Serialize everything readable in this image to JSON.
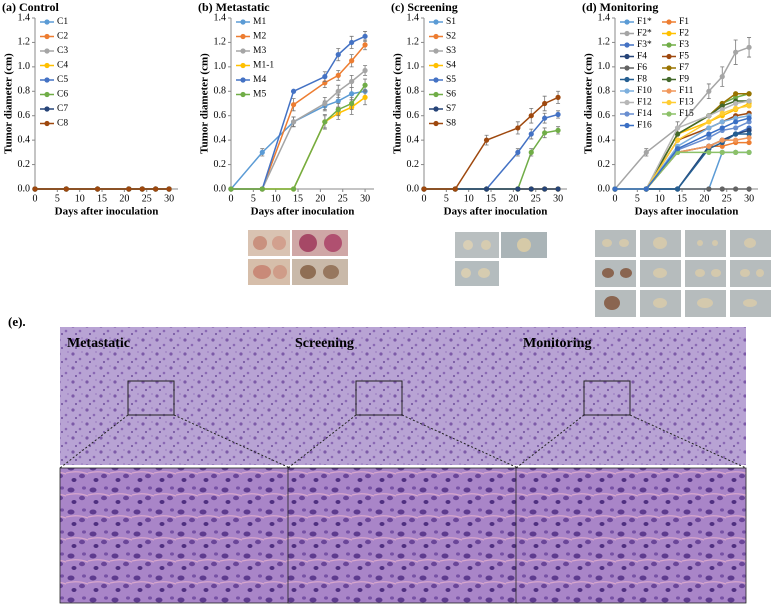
{
  "chart_data": [
    {
      "type": "line",
      "title": "(a) Control",
      "xlabel": "Days after inoculation",
      "ylabel": "Tumor diameter (cm)",
      "x": [
        0,
        7,
        14,
        21,
        24,
        27,
        30
      ],
      "xlim": [
        0,
        32
      ],
      "xticks": [
        0,
        5,
        10,
        15,
        20,
        25,
        30
      ],
      "ylim": [
        0,
        1.4
      ],
      "yticks": [
        {
          "value": 0,
          "label": "0.0"
        },
        0.2,
        0.4,
        0.6,
        0.8,
        {
          "value": 1,
          "label": "1.0"
        },
        1.2,
        1.4
      ],
      "legend": "upper left",
      "legend_columns": 1,
      "series": [
        {
          "name": "C1",
          "color": "#5b9bd5",
          "values": [
            0,
            0,
            0,
            0,
            0,
            0,
            0
          ]
        },
        {
          "name": "C2",
          "color": "#ed7d31",
          "values": [
            0,
            0,
            0,
            0,
            0,
            0,
            0
          ]
        },
        {
          "name": "C3",
          "color": "#a5a5a5",
          "values": [
            0,
            0,
            0,
            0,
            0,
            0,
            0
          ]
        },
        {
          "name": "C4",
          "color": "#ffc000",
          "values": [
            0,
            0,
            0,
            0,
            0,
            0,
            0
          ]
        },
        {
          "name": "C5",
          "color": "#4472c4",
          "values": [
            0,
            0,
            0,
            0,
            0,
            0,
            0
          ]
        },
        {
          "name": "C6",
          "color": "#70ad47",
          "values": [
            0,
            0,
            0,
            0,
            0,
            0,
            0
          ]
        },
        {
          "name": "C7",
          "color": "#264478",
          "values": [
            0,
            0,
            0,
            0,
            0,
            0,
            0
          ]
        },
        {
          "name": "C8",
          "color": "#9e480e",
          "values": [
            0,
            0,
            0,
            0,
            0,
            0,
            0
          ]
        }
      ]
    },
    {
      "type": "line",
      "title": "(b) Metastatic",
      "xlabel": "Days after inoculation",
      "ylabel": "Tumor diameter (cm)",
      "x": [
        0,
        7,
        14,
        21,
        24,
        27,
        30
      ],
      "xlim": [
        0,
        32
      ],
      "xticks": [
        0,
        5,
        10,
        15,
        20,
        25,
        30
      ],
      "ylim": [
        0,
        1.4
      ],
      "yticks": [
        {
          "value": 0,
          "label": "0.0"
        },
        0.2,
        0.4,
        0.6,
        0.8,
        {
          "value": 1,
          "label": "1.0"
        },
        1.2,
        1.4
      ],
      "legend": "upper left",
      "legend_columns": 1,
      "series": [
        {
          "name": "M1",
          "color": "#5b9bd5",
          "values": [
            0,
            0.3,
            0.55,
            0.68,
            0.72,
            0.78,
            0.8
          ],
          "errors": [
            0,
            0.03,
            0.04,
            0.04,
            0.05,
            0.05,
            0.05
          ]
        },
        {
          "name": "M2",
          "color": "#ed7d31",
          "values": [
            0,
            0,
            0.69,
            0.87,
            0.93,
            1.05,
            1.18
          ],
          "errors": [
            0,
            0,
            0.05,
            0.04,
            0.04,
            0.05,
            0.04
          ]
        },
        {
          "name": "M3",
          "color": "#a5a5a5",
          "values": [
            0,
            0,
            0.55,
            0.7,
            0.8,
            0.88,
            0.97
          ],
          "errors": [
            0,
            0,
            0.04,
            0.05,
            0.05,
            0.05,
            0.04
          ]
        },
        {
          "name": "M1-1",
          "color": "#ffc000",
          "values": [
            0,
            0,
            0,
            0.55,
            0.62,
            0.67,
            0.75
          ],
          "errors": [
            0,
            0,
            0,
            0.05,
            0.05,
            0.06,
            0.06
          ]
        },
        {
          "name": "M4",
          "color": "#4472c4",
          "values": [
            0,
            0,
            0.8,
            0.92,
            1.1,
            1.2,
            1.25
          ],
          "errors": [
            0,
            0,
            0,
            0.04,
            0.05,
            0.05,
            0.04
          ]
        },
        {
          "name": "M5",
          "color": "#70ad47",
          "values": [
            0,
            0,
            0,
            0.55,
            0.65,
            0.7,
            0.85
          ],
          "errors": [
            0,
            0,
            0,
            0.06,
            0.05,
            0.05,
            0.05
          ]
        }
      ]
    },
    {
      "type": "line",
      "title": "(c) Screening",
      "xlabel": "Days after inoculation",
      "ylabel": "Tumor diameter (cm)",
      "x": [
        0,
        7,
        14,
        21,
        24,
        27,
        30
      ],
      "xlim": [
        0,
        32
      ],
      "xticks": [
        0,
        5,
        10,
        15,
        20,
        25,
        30
      ],
      "ylim": [
        0,
        1.4
      ],
      "yticks": [
        {
          "value": 0,
          "label": "0.0"
        },
        0.2,
        0.4,
        0.6,
        0.8,
        {
          "value": 1,
          "label": "1.0"
        },
        1.2,
        1.4
      ],
      "legend": "upper left",
      "legend_columns": 1,
      "series": [
        {
          "name": "S1",
          "color": "#5b9bd5",
          "values": [
            0,
            0,
            0,
            0,
            0,
            0,
            0
          ]
        },
        {
          "name": "S2",
          "color": "#ed7d31",
          "values": [
            0,
            0,
            0,
            0,
            0,
            0,
            0
          ]
        },
        {
          "name": "S3",
          "color": "#a5a5a5",
          "values": [
            0,
            0,
            0,
            0,
            0,
            0,
            0
          ]
        },
        {
          "name": "S4",
          "color": "#ffc000",
          "values": [
            0,
            0,
            0,
            0,
            0,
            0,
            0
          ]
        },
        {
          "name": "S5",
          "color": "#4472c4",
          "values": [
            0,
            0,
            0,
            0.3,
            0.45,
            0.58,
            0.61
          ],
          "errors": [
            0,
            0,
            0,
            0.03,
            0.04,
            0.04,
            0.03
          ]
        },
        {
          "name": "S6",
          "color": "#70ad47",
          "values": [
            0,
            0,
            0,
            0,
            0.3,
            0.46,
            0.48
          ],
          "errors": [
            0,
            0,
            0,
            0,
            0.03,
            0.04,
            0.03
          ]
        },
        {
          "name": "S7",
          "color": "#264478",
          "values": [
            0,
            0,
            0,
            0,
            0,
            0,
            0
          ]
        },
        {
          "name": "S8",
          "color": "#9e480e",
          "values": [
            0,
            0,
            0.4,
            0.5,
            0.6,
            0.7,
            0.75
          ],
          "errors": [
            0,
            0,
            0.04,
            0.05,
            0.06,
            0.06,
            0.05
          ]
        }
      ]
    },
    {
      "type": "line",
      "title": "(d) Monitoring",
      "xlabel": "Days after inoculation",
      "ylabel": "Tumor diameter (cm)",
      "x": [
        0,
        7,
        14,
        21,
        24,
        27,
        30
      ],
      "xlim": [
        0,
        32
      ],
      "xticks": [
        0,
        5,
        10,
        15,
        20,
        25,
        30
      ],
      "ylim": [
        0,
        1.4
      ],
      "yticks": [
        {
          "value": 0,
          "label": "0.0"
        },
        0.2,
        0.4,
        0.6,
        0.8,
        {
          "value": 1,
          "label": "1.0"
        },
        1.2,
        1.4
      ],
      "legend": "upper left",
      "legend_columns": 2,
      "series": [
        {
          "name": "F1*",
          "color": "#5b9bd5",
          "values": [
            0,
            0,
            0,
            0,
            0.3,
            0.3,
            0.3
          ]
        },
        {
          "name": "F1",
          "color": "#ed7d31",
          "values": [
            0,
            0,
            0.3,
            0.35,
            0.35,
            0.38,
            0.38
          ]
        },
        {
          "name": "F2*",
          "color": "#a5a5a5",
          "values": [
            0,
            0.3,
            0.5,
            0.8,
            0.92,
            1.12,
            1.16
          ],
          "errors": [
            0,
            0.03,
            0.05,
            0.06,
            0.08,
            0.1,
            0.08
          ]
        },
        {
          "name": "F2",
          "color": "#ffc000",
          "values": [
            0,
            0,
            0.45,
            0.55,
            0.6,
            0.65,
            0.7
          ]
        },
        {
          "name": "F3*",
          "color": "#4472c4",
          "values": [
            0,
            0,
            0.3,
            0.35,
            0.4,
            0.45,
            0.5
          ]
        },
        {
          "name": "F3",
          "color": "#70ad47",
          "values": [
            0,
            0,
            0.45,
            0.6,
            0.7,
            0.75,
            0.78
          ]
        },
        {
          "name": "F4",
          "color": "#264478",
          "values": [
            0,
            0,
            0,
            0.35,
            0.4,
            0.45,
            0.48
          ]
        },
        {
          "name": "F5",
          "color": "#9e480e",
          "values": [
            0,
            0,
            0.4,
            0.5,
            0.55,
            0.6,
            0.62
          ]
        },
        {
          "name": "F6",
          "color": "#636363",
          "values": [
            0,
            0,
            0,
            0,
            0,
            0,
            0
          ]
        },
        {
          "name": "F7",
          "color": "#997300",
          "values": [
            0,
            0,
            0.45,
            0.6,
            0.7,
            0.78,
            0.78
          ]
        },
        {
          "name": "F8",
          "color": "#255e91",
          "values": [
            0,
            0,
            0,
            0.33,
            0.38,
            0.45,
            0.45
          ]
        },
        {
          "name": "F9",
          "color": "#43682b",
          "values": [
            0,
            0,
            0.45,
            0.6,
            0.68,
            0.72,
            0.72
          ]
        },
        {
          "name": "F10",
          "color": "#7cafdd",
          "values": [
            0,
            0,
            0.35,
            0.5,
            0.55,
            0.58,
            0.6
          ]
        },
        {
          "name": "F11",
          "color": "#f1975a",
          "values": [
            0,
            0,
            0.3,
            0.35,
            0.4,
            0.4,
            0.42
          ]
        },
        {
          "name": "F12",
          "color": "#b7b7b7",
          "values": [
            0,
            0,
            0.5,
            0.6,
            0.65,
            0.7,
            0.72
          ]
        },
        {
          "name": "F13",
          "color": "#ffcd33",
          "values": [
            0,
            0,
            0.4,
            0.55,
            0.62,
            0.66,
            0.68
          ]
        },
        {
          "name": "F14",
          "color": "#698ed0",
          "values": [
            0,
            0,
            0.32,
            0.42,
            0.48,
            0.5,
            0.55
          ]
        },
        {
          "name": "F15",
          "color": "#8cc168",
          "values": [
            0,
            0,
            0.3,
            0.3,
            0.3,
            0.3,
            0.3
          ]
        },
        {
          "name": "F16",
          "color": "#3a6fc4",
          "values": [
            0,
            0,
            0.33,
            0.45,
            0.5,
            0.55,
            0.58
          ]
        }
      ]
    }
  ],
  "figure_e": {
    "label": "(e).",
    "panels": [
      "Metastatic",
      "Screening",
      "Monitoring"
    ]
  }
}
